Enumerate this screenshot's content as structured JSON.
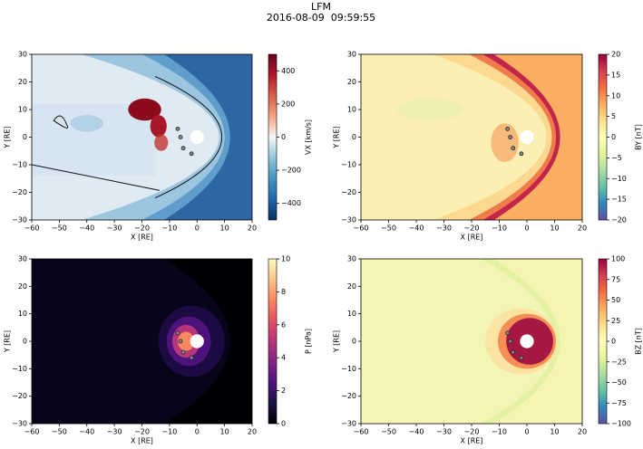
{
  "title": "LFM",
  "subtitle": "2016-08-09  09:59:55",
  "chart_data": [
    {
      "type": "heatmap",
      "xlabel": "X [RE]",
      "ylabel": "Y [RE]",
      "colorbar_label": "VX [km/s]",
      "xlim": [
        -60,
        20
      ],
      "ylim": [
        -30,
        30
      ],
      "xticks": [
        {
          "value": -60,
          "label": "−60"
        },
        {
          "value": -50,
          "label": "−50"
        },
        {
          "value": -40,
          "label": "−40"
        },
        {
          "value": -30,
          "label": "−30"
        },
        {
          "value": -20,
          "label": "−20"
        },
        {
          "value": -10,
          "label": "−10"
        },
        0,
        10,
        20
      ],
      "yticks": [
        {
          "value": -30,
          "label": "−30"
        },
        {
          "value": -20,
          "label": "−20"
        },
        {
          "value": -10,
          "label": "−10"
        },
        0,
        10,
        20,
        30
      ],
      "clim": [
        -500,
        500
      ],
      "cticks": [
        {
          "value": -400,
          "label": "−400"
        },
        {
          "value": -200,
          "label": "−200"
        },
        0,
        200,
        400
      ],
      "colormap": [
        "#053061",
        "#2166ac",
        "#4393c3",
        "#92c5de",
        "#f7f7f7",
        "#f4a582",
        "#d6604d",
        "#b2182b",
        "#67001f"
      ],
      "points": {
        "x": [
          -7,
          -6,
          -5,
          -2
        ],
        "y": [
          3,
          0,
          -4,
          -6
        ]
      }
    },
    {
      "type": "heatmap",
      "xlabel": "X [RE]",
      "ylabel": "Y [RE]",
      "colorbar_label": "BY [nT]",
      "xlim": [
        -60,
        20
      ],
      "ylim": [
        -30,
        30
      ],
      "xticks": [
        {
          "value": -60,
          "label": "−60"
        },
        {
          "value": -50,
          "label": "−50"
        },
        {
          "value": -40,
          "label": "−40"
        },
        {
          "value": -30,
          "label": "−30"
        },
        {
          "value": -20,
          "label": "−20"
        },
        {
          "value": -10,
          "label": "−10"
        },
        0,
        10,
        20
      ],
      "yticks": [
        {
          "value": -30,
          "label": "−30"
        },
        {
          "value": -20,
          "label": "−20"
        },
        {
          "value": -10,
          "label": "−10"
        },
        0,
        10,
        20,
        30
      ],
      "clim": [
        -20,
        20
      ],
      "cticks": [
        {
          "value": -20,
          "label": "−20"
        },
        {
          "value": -15,
          "label": "−15"
        },
        {
          "value": -10,
          "label": "−10"
        },
        {
          "value": -5,
          "label": "−5"
        },
        0,
        5,
        10,
        15,
        20
      ],
      "colormap": [
        "#5e4fa2",
        "#3288bd",
        "#66c2a5",
        "#abdda4",
        "#e6f598",
        "#ffffbf",
        "#fee08b",
        "#fdae61",
        "#f46d43",
        "#d53e4f",
        "#9e0142"
      ],
      "points": {
        "x": [
          -7,
          -6,
          -5,
          -2
        ],
        "y": [
          3,
          0,
          -4,
          -6
        ]
      }
    },
    {
      "type": "heatmap",
      "xlabel": "X [RE]",
      "ylabel": "Y [RE]",
      "colorbar_label": "P [nPa]",
      "xlim": [
        -60,
        20
      ],
      "ylim": [
        -30,
        30
      ],
      "xticks": [
        {
          "value": -60,
          "label": "−60"
        },
        {
          "value": -50,
          "label": "−50"
        },
        {
          "value": -40,
          "label": "−40"
        },
        {
          "value": -30,
          "label": "−30"
        },
        {
          "value": -20,
          "label": "−20"
        },
        {
          "value": -10,
          "label": "−10"
        },
        0,
        10,
        20
      ],
      "yticks": [
        {
          "value": -30,
          "label": "−30"
        },
        {
          "value": -20,
          "label": "−20"
        },
        {
          "value": -10,
          "label": "−10"
        },
        0,
        10,
        20,
        30
      ],
      "clim": [
        0,
        10
      ],
      "cticks": [
        0,
        2,
        4,
        6,
        8,
        10
      ],
      "colormap": [
        "#000004",
        "#1c1044",
        "#4f127b",
        "#812581",
        "#b5367a",
        "#e55064",
        "#fb8761",
        "#fec287",
        "#fcfdbf"
      ],
      "points": {
        "x": [
          -7,
          -6,
          -5,
          -2
        ],
        "y": [
          3,
          0,
          -4,
          -6
        ]
      }
    },
    {
      "type": "heatmap",
      "xlabel": "X [RE]",
      "ylabel": "Y [RE]",
      "colorbar_label": "BZ [nT]",
      "xlim": [
        -60,
        20
      ],
      "ylim": [
        -30,
        30
      ],
      "xticks": [
        {
          "value": -60,
          "label": "−60"
        },
        {
          "value": -50,
          "label": "−50"
        },
        {
          "value": -40,
          "label": "−40"
        },
        {
          "value": -30,
          "label": "−30"
        },
        {
          "value": -20,
          "label": "−20"
        },
        {
          "value": -10,
          "label": "−10"
        },
        0,
        10,
        20
      ],
      "yticks": [
        {
          "value": -30,
          "label": "−30"
        },
        {
          "value": -20,
          "label": "−20"
        },
        {
          "value": -10,
          "label": "−10"
        },
        0,
        10,
        20,
        30
      ],
      "clim": [
        -100,
        100
      ],
      "cticks": [
        {
          "value": -100,
          "label": "−100"
        },
        {
          "value": -75,
          "label": "−75"
        },
        {
          "value": -50,
          "label": "−50"
        },
        {
          "value": -25,
          "label": "−25"
        },
        0,
        25,
        50,
        75,
        100
      ],
      "colormap": [
        "#5e4fa2",
        "#3288bd",
        "#66c2a5",
        "#abdda4",
        "#e6f598",
        "#ffffbf",
        "#fee08b",
        "#fdae61",
        "#f46d43",
        "#d53e4f",
        "#9e0142"
      ],
      "points": {
        "x": [
          -7,
          -6,
          -5,
          -2
        ],
        "y": [
          3,
          0,
          -4,
          -6
        ]
      }
    }
  ]
}
